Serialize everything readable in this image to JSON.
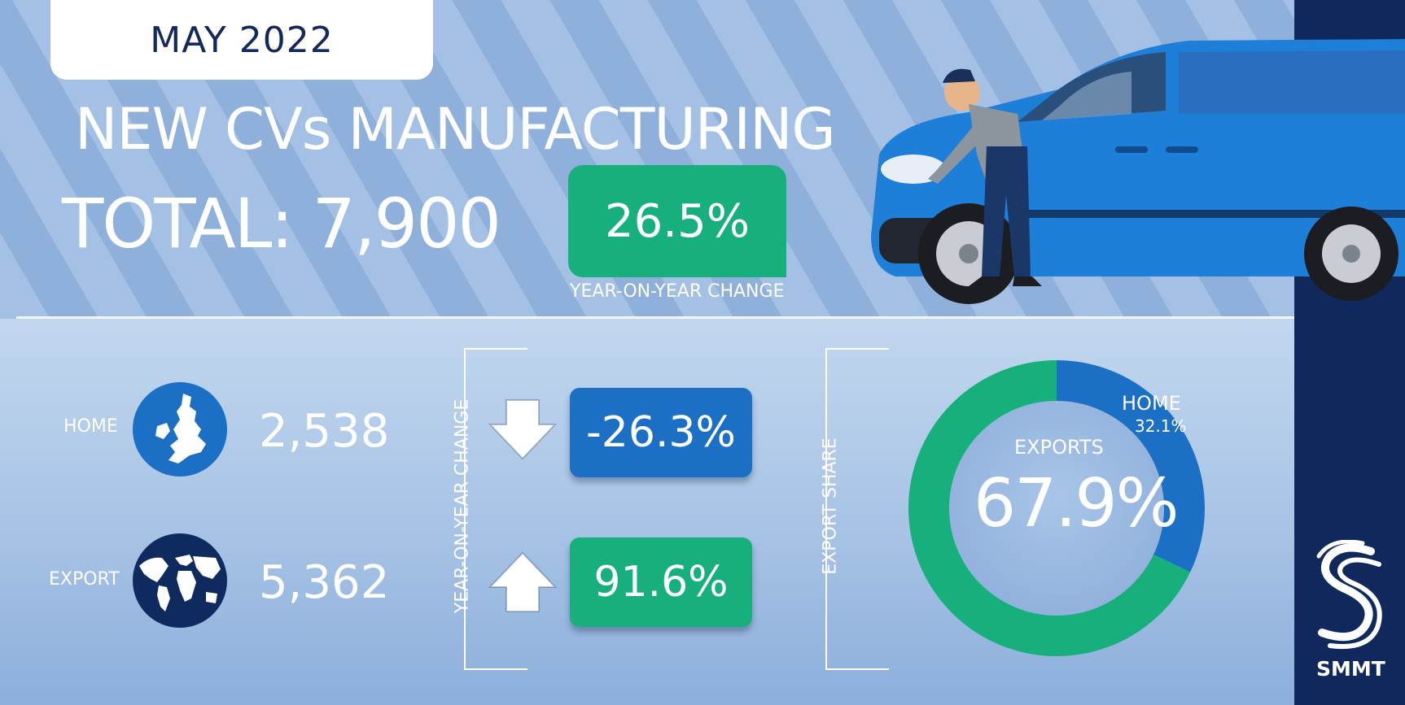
{
  "header": {
    "date": "MAY 2022",
    "headline": "NEW CVs MANUFACTURING",
    "total": "TOTAL: 7,900",
    "yoy_change": "26.5%",
    "yoy_label": "YEAR-ON-YEAR CHANGE"
  },
  "rows": [
    {
      "label": "HOME",
      "value": "2,538",
      "change": "-26.3%",
      "direction": "down",
      "icon": "uk-map-icon",
      "color": "#1b6fc4"
    },
    {
      "label": "EXPORT",
      "value": "5,362",
      "change": "91.6%",
      "direction": "up",
      "icon": "globe-icon",
      "color": "#17b07c"
    }
  ],
  "change_axis_label": "YEAR-ON-YEAR CHANGE",
  "share_axis_label": "EXPORT SHARE",
  "donut": {
    "home_label": "HOME",
    "home_pct": "32.1%",
    "home_share": 32.1,
    "exports_label": "EXPORTS",
    "exports_pct": "67.9%",
    "exports_share": 67.9,
    "home_color": "#1b6fc4",
    "exports_color": "#17b07c"
  },
  "brand": {
    "name": "SMMT",
    "sidebar_color": "#10285c"
  },
  "colors": {
    "accent_green": "#17b07c",
    "accent_blue": "#1b6fc4",
    "navy": "#13295b"
  }
}
